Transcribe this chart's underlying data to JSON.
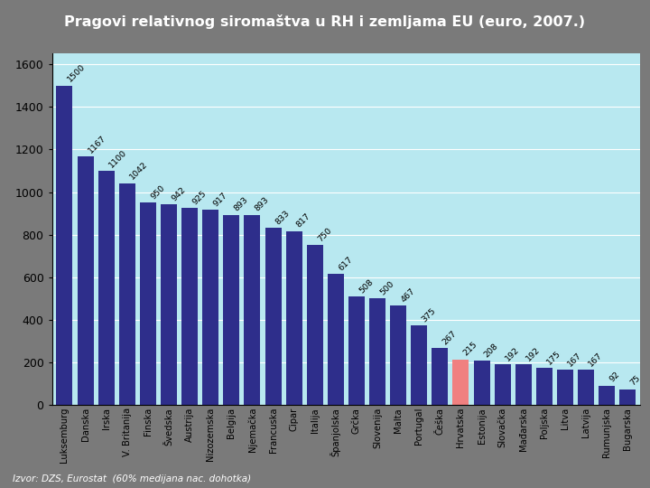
{
  "title": "Pragovi relativnog siromaštva u RH i zemljama EU (euro, 2007.)",
  "subtitle": "Izvor: DZS, Eurostat  (60% medijana nac. dohotka)",
  "categories": [
    "Luksemburg",
    "Danska",
    "Irska",
    "V. Britanija",
    "Finska",
    "Švedska",
    "Austrija",
    "Nizozemska",
    "Belgija",
    "Njemačka",
    "Francuska",
    "Cipar",
    "Italija",
    "Španjolska",
    "Grčka",
    "Slovenija",
    "Malta",
    "Portugal",
    "Češka",
    "Hrvatska",
    "Estonija",
    "Slovačka",
    "Mađarska",
    "Poljska",
    "Litva",
    "Latvija",
    "Rumunjska",
    "Bugarska"
  ],
  "values": [
    1500,
    1167,
    1100,
    1042,
    950,
    942,
    925,
    917,
    893,
    893,
    833,
    817,
    750,
    617,
    508,
    500,
    467,
    375,
    267,
    215,
    208,
    192,
    192,
    175,
    167,
    167,
    92,
    75
  ],
  "highlight_index": 19,
  "bar_color": "#2e2e8b",
  "highlight_color": "#f08080",
  "background_color": "#b8e8f0",
  "outer_bg_color": "#7a7a7a",
  "title_bg_color": "#1a1a6e",
  "title_text_color": "#ffffff",
  "frame_color": "#000000",
  "subtitle_color": "#ffffff",
  "ylim": [
    0,
    1650
  ],
  "yticks": [
    0,
    200,
    400,
    600,
    800,
    1000,
    1200,
    1400,
    1600
  ]
}
